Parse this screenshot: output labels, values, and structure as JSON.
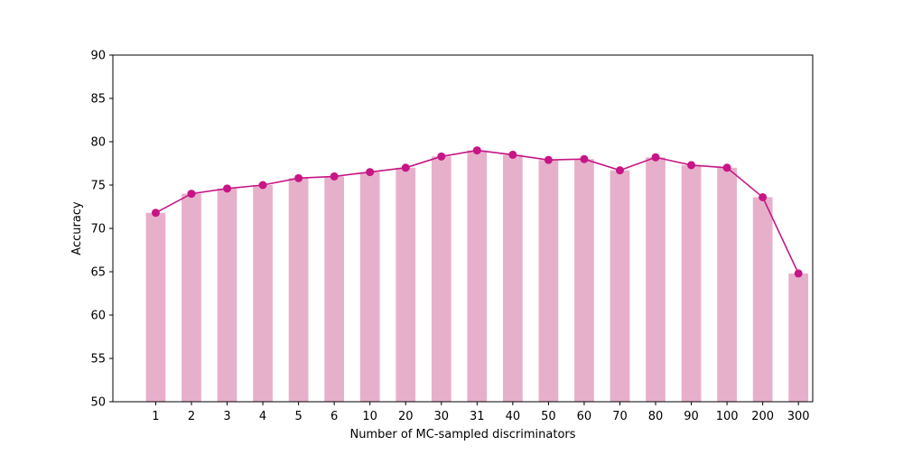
{
  "chart_data": {
    "type": "bar",
    "title": "",
    "xlabel": "Number of MC-sampled discriminators",
    "ylabel": "Accuracy",
    "categories": [
      "1",
      "2",
      "3",
      "4",
      "5",
      "6",
      "10",
      "20",
      "30",
      "31",
      "40",
      "50",
      "60",
      "70",
      "80",
      "90",
      "100",
      "200",
      "300"
    ],
    "series": [
      {
        "type": "bar",
        "color": "#e6b0cb",
        "values": [
          71.8,
          74.0,
          74.6,
          75.0,
          75.8,
          76.0,
          76.5,
          77.0,
          78.3,
          79.0,
          78.5,
          77.9,
          78.0,
          76.7,
          78.2,
          77.3,
          77.0,
          73.6,
          64.8
        ]
      },
      {
        "type": "line",
        "color": "#c71585",
        "marker": "circle",
        "values": [
          71.8,
          74.0,
          74.6,
          75.0,
          75.8,
          76.0,
          76.5,
          77.0,
          78.3,
          79.0,
          78.5,
          77.9,
          78.0,
          76.7,
          78.2,
          77.3,
          77.0,
          73.6,
          64.8
        ]
      }
    ],
    "ylim": [
      50,
      90
    ],
    "yticks": [
      50,
      55,
      60,
      65,
      70,
      75,
      80,
      85,
      90
    ],
    "grid": false,
    "legend": "none"
  }
}
